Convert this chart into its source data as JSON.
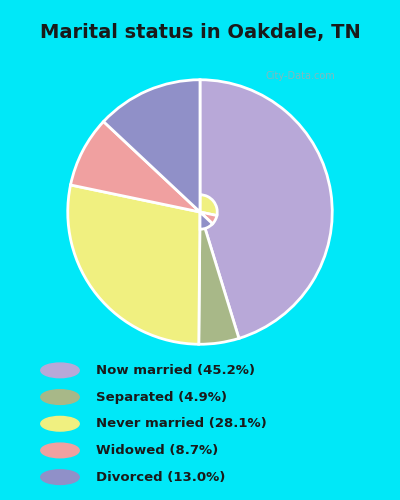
{
  "title": "Marital status in Oakdale, TN",
  "title_fontsize": 14,
  "slices": [
    {
      "label": "Now married (45.2%)",
      "value": 45.2,
      "color": "#b8a8d8"
    },
    {
      "label": "Separated (4.9%)",
      "value": 4.9,
      "color": "#a8b888"
    },
    {
      "label": "Never married (28.1%)",
      "value": 28.1,
      "color": "#f0f080"
    },
    {
      "label": "Widowed (8.7%)",
      "value": 8.7,
      "color": "#f0a0a0"
    },
    {
      "label": "Divorced (13.0%)",
      "value": 13.0,
      "color": "#9090c8"
    }
  ],
  "legend_colors": [
    "#b8a8d8",
    "#a8b888",
    "#f0f080",
    "#f0a0a0",
    "#9090c8"
  ],
  "legend_labels": [
    "Now married (45.2%)",
    "Separated (4.9%)",
    "Never married (28.1%)",
    "Widowed (8.7%)",
    "Divorced (13.0%)"
  ],
  "bg_cyan": "#00e8f8",
  "bg_chart_inner": "#e8f5e8",
  "watermark": "City-Data.com",
  "start_angle": 90,
  "donut_width": 0.52
}
